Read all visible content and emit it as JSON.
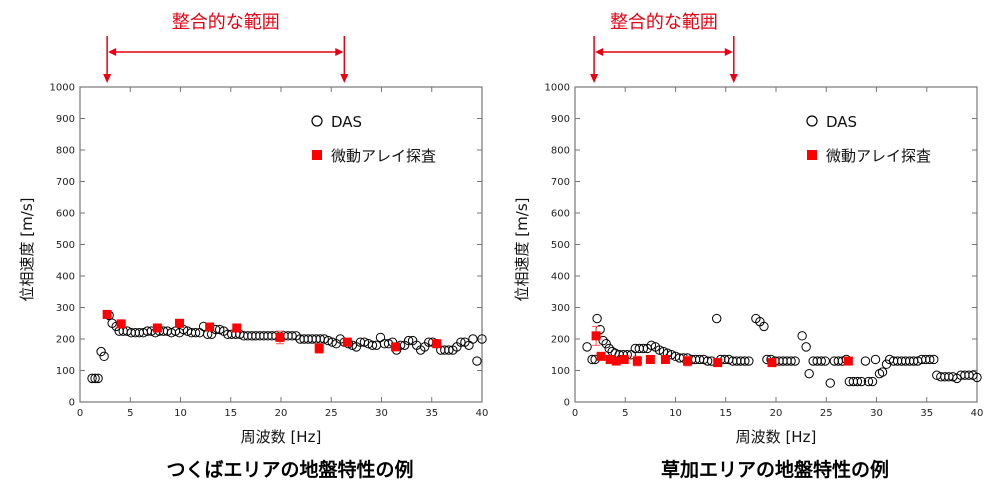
{
  "colors": {
    "das": "#000000",
    "array": "#ff0000",
    "annotation": "#e60012"
  },
  "chart_data": [
    {
      "type": "scatter",
      "caption": "つくばエリアの地盤特性の例",
      "annotation": {
        "label": "整合的な範囲",
        "range": [
          2.7,
          26.3
        ]
      },
      "xlabel": "周波数 [Hz]",
      "ylabel": "位相速度 [m/s]",
      "xlim": [
        0,
        40
      ],
      "ylim": [
        0,
        1000
      ],
      "xticks": [
        0,
        5,
        10,
        15,
        20,
        25,
        30,
        35,
        40
      ],
      "yticks": [
        0,
        100,
        200,
        300,
        400,
        500,
        600,
        700,
        800,
        900,
        1000
      ],
      "legend_position": "top-right",
      "grid": false,
      "series": [
        {
          "name": "DAS",
          "marker": "open-circle",
          "points": [
            [
              1.2,
              75
            ],
            [
              1.5,
              75
            ],
            [
              1.8,
              75
            ],
            [
              2.1,
              160
            ],
            [
              2.4,
              145
            ],
            [
              2.9,
              275
            ],
            [
              3.2,
              250
            ],
            [
              3.6,
              240
            ],
            [
              3.9,
              225
            ],
            [
              4.3,
              225
            ],
            [
              4.7,
              225
            ],
            [
              5.1,
              220
            ],
            [
              5.5,
              220
            ],
            [
              5.9,
              220
            ],
            [
              6.3,
              220
            ],
            [
              6.7,
              225
            ],
            [
              7.1,
              225
            ],
            [
              7.5,
              220
            ],
            [
              7.9,
              225
            ],
            [
              8.3,
              225
            ],
            [
              8.7,
              225
            ],
            [
              9.1,
              220
            ],
            [
              9.5,
              225
            ],
            [
              9.9,
              220
            ],
            [
              10.3,
              230
            ],
            [
              10.7,
              225
            ],
            [
              11.1,
              220
            ],
            [
              11.5,
              220
            ],
            [
              11.9,
              220
            ],
            [
              12.3,
              240
            ],
            [
              12.7,
              215
            ],
            [
              13.1,
              215
            ],
            [
              13.5,
              230
            ],
            [
              13.9,
              230
            ],
            [
              14.3,
              225
            ],
            [
              14.7,
              215
            ],
            [
              15.1,
              215
            ],
            [
              15.5,
              215
            ],
            [
              15.9,
              215
            ],
            [
              16.3,
              210
            ],
            [
              16.7,
              210
            ],
            [
              17.1,
              210
            ],
            [
              17.5,
              210
            ],
            [
              17.9,
              210
            ],
            [
              18.3,
              210
            ],
            [
              18.7,
              210
            ],
            [
              19.1,
              210
            ],
            [
              19.5,
              210
            ],
            [
              20.3,
              210
            ],
            [
              20.7,
              210
            ],
            [
              21.1,
              210
            ],
            [
              21.5,
              210
            ],
            [
              21.9,
              200
            ],
            [
              22.3,
              200
            ],
            [
              22.7,
              200
            ],
            [
              23.1,
              200
            ],
            [
              23.5,
              200
            ],
            [
              23.9,
              200
            ],
            [
              24.3,
              200
            ],
            [
              24.7,
              195
            ],
            [
              25.1,
              190
            ],
            [
              25.5,
              185
            ],
            [
              25.9,
              200
            ],
            [
              26.3,
              190
            ],
            [
              26.7,
              185
            ],
            [
              27.1,
              180
            ],
            [
              27.5,
              175
            ],
            [
              27.9,
              190
            ],
            [
              28.3,
              190
            ],
            [
              28.7,
              185
            ],
            [
              29.1,
              180
            ],
            [
              29.5,
              180
            ],
            [
              29.9,
              205
            ],
            [
              30.3,
              185
            ],
            [
              30.7,
              185
            ],
            [
              31.1,
              190
            ],
            [
              31.5,
              165
            ],
            [
              31.9,
              180
            ],
            [
              32.3,
              180
            ],
            [
              32.7,
              195
            ],
            [
              33.1,
              195
            ],
            [
              33.5,
              180
            ],
            [
              33.9,
              165
            ],
            [
              34.3,
              175
            ],
            [
              34.7,
              190
            ],
            [
              35.1,
              190
            ],
            [
              35.5,
              185
            ],
            [
              35.9,
              165
            ],
            [
              36.3,
              165
            ],
            [
              36.7,
              165
            ],
            [
              37.1,
              165
            ],
            [
              37.5,
              175
            ],
            [
              37.9,
              190
            ],
            [
              38.3,
              190
            ],
            [
              38.7,
              180
            ],
            [
              39.1,
              200
            ],
            [
              39.5,
              130
            ],
            [
              40,
              200
            ]
          ]
        },
        {
          "name": "微動アレイ探査",
          "marker": "filled-square",
          "points": [
            [
              2.7,
              278,
              0
            ],
            [
              4.1,
              248,
              0
            ],
            [
              7.7,
              235,
              0
            ],
            [
              9.9,
              250,
              0
            ],
            [
              12.9,
              238,
              0
            ],
            [
              15.6,
              235,
              0
            ],
            [
              19.9,
              205,
              20
            ],
            [
              23.8,
              170,
              15
            ],
            [
              26.6,
              190,
              0
            ],
            [
              31.4,
              175,
              0
            ],
            [
              35.5,
              185,
              0
            ]
          ]
        }
      ]
    },
    {
      "type": "scatter",
      "caption": "草加エリアの地盤特性の例",
      "annotation": {
        "label": "整合的な範囲",
        "range": [
          1.9,
          15.8
        ]
      },
      "xlabel": "周波数 [Hz]",
      "ylabel": "位相速度 [m/s]",
      "xlim": [
        0,
        40
      ],
      "ylim": [
        0,
        1000
      ],
      "xticks": [
        0,
        5,
        10,
        15,
        20,
        25,
        30,
        35,
        40
      ],
      "yticks": [
        0,
        100,
        200,
        300,
        400,
        500,
        600,
        700,
        800,
        900,
        1000
      ],
      "legend_position": "top-right",
      "grid": false,
      "series": [
        {
          "name": "DAS",
          "marker": "open-circle",
          "points": [
            [
              1.2,
              175
            ],
            [
              1.7,
              135
            ],
            [
              2.0,
              135
            ],
            [
              2.2,
              265
            ],
            [
              2.5,
              230
            ],
            [
              2.8,
              195
            ],
            [
              3.1,
              185
            ],
            [
              3.4,
              170
            ],
            [
              3.7,
              160
            ],
            [
              4.0,
              155
            ],
            [
              4.4,
              150
            ],
            [
              4.8,
              150
            ],
            [
              5.2,
              150
            ],
            [
              5.6,
              150
            ],
            [
              6.0,
              170
            ],
            [
              6.4,
              170
            ],
            [
              6.8,
              170
            ],
            [
              7.2,
              170
            ],
            [
              7.6,
              180
            ],
            [
              8.0,
              175
            ],
            [
              8.4,
              165
            ],
            [
              8.8,
              160
            ],
            [
              9.2,
              155
            ],
            [
              9.6,
              150
            ],
            [
              10.0,
              145
            ],
            [
              10.4,
              140
            ],
            [
              10.8,
              140
            ],
            [
              11.2,
              140
            ],
            [
              11.6,
              135
            ],
            [
              12.0,
              135
            ],
            [
              12.4,
              135
            ],
            [
              12.8,
              135
            ],
            [
              13.2,
              130
            ],
            [
              13.6,
              130
            ],
            [
              14.1,
              265
            ],
            [
              14.5,
              135
            ],
            [
              14.9,
              135
            ],
            [
              15.3,
              135
            ],
            [
              15.7,
              130
            ],
            [
              16.1,
              130
            ],
            [
              16.5,
              130
            ],
            [
              16.9,
              130
            ],
            [
              17.3,
              130
            ],
            [
              18.0,
              265
            ],
            [
              18.4,
              255
            ],
            [
              18.8,
              240
            ],
            [
              19.1,
              135
            ],
            [
              19.5,
              135
            ],
            [
              19.9,
              130
            ],
            [
              20.3,
              130
            ],
            [
              20.7,
              130
            ],
            [
              21.1,
              130
            ],
            [
              21.5,
              130
            ],
            [
              21.9,
              130
            ],
            [
              22.6,
              210
            ],
            [
              23.0,
              175
            ],
            [
              23.3,
              90
            ],
            [
              23.7,
              130
            ],
            [
              24.1,
              130
            ],
            [
              24.5,
              130
            ],
            [
              24.9,
              130
            ],
            [
              25.4,
              60
            ],
            [
              25.8,
              130
            ],
            [
              26.2,
              130
            ],
            [
              26.6,
              130
            ],
            [
              27.0,
              135
            ],
            [
              27.3,
              65
            ],
            [
              27.7,
              65
            ],
            [
              28.1,
              65
            ],
            [
              28.5,
              65
            ],
            [
              28.9,
              130
            ],
            [
              29.2,
              65
            ],
            [
              29.6,
              65
            ],
            [
              29.9,
              135
            ],
            [
              30.3,
              90
            ],
            [
              30.6,
              95
            ],
            [
              31.0,
              120
            ],
            [
              31.3,
              135
            ],
            [
              31.7,
              130
            ],
            [
              32.1,
              130
            ],
            [
              32.5,
              130
            ],
            [
              32.9,
              130
            ],
            [
              33.3,
              130
            ],
            [
              33.7,
              130
            ],
            [
              34.1,
              130
            ],
            [
              34.5,
              135
            ],
            [
              34.9,
              135
            ],
            [
              35.3,
              135
            ],
            [
              35.7,
              135
            ],
            [
              36.0,
              85
            ],
            [
              36.4,
              80
            ],
            [
              36.8,
              80
            ],
            [
              37.2,
              80
            ],
            [
              37.6,
              80
            ],
            [
              38.0,
              75
            ],
            [
              38.4,
              85
            ],
            [
              38.8,
              85
            ],
            [
              39.2,
              85
            ],
            [
              39.6,
              85
            ],
            [
              40.0,
              78
            ]
          ]
        },
        {
          "name": "微動アレイ探査",
          "marker": "filled-square",
          "points": [
            [
              2.1,
              210,
              30
            ],
            [
              2.6,
              145,
              0
            ],
            [
              3.5,
              135,
              0
            ],
            [
              4.1,
              130,
              0
            ],
            [
              4.9,
              135,
              0
            ],
            [
              6.2,
              130,
              15
            ],
            [
              7.5,
              135,
              0
            ],
            [
              9.0,
              135,
              0
            ],
            [
              11.2,
              130,
              15
            ],
            [
              14.2,
              125,
              0
            ],
            [
              19.6,
              125,
              0
            ],
            [
              27.2,
              130,
              0
            ]
          ]
        }
      ]
    }
  ]
}
